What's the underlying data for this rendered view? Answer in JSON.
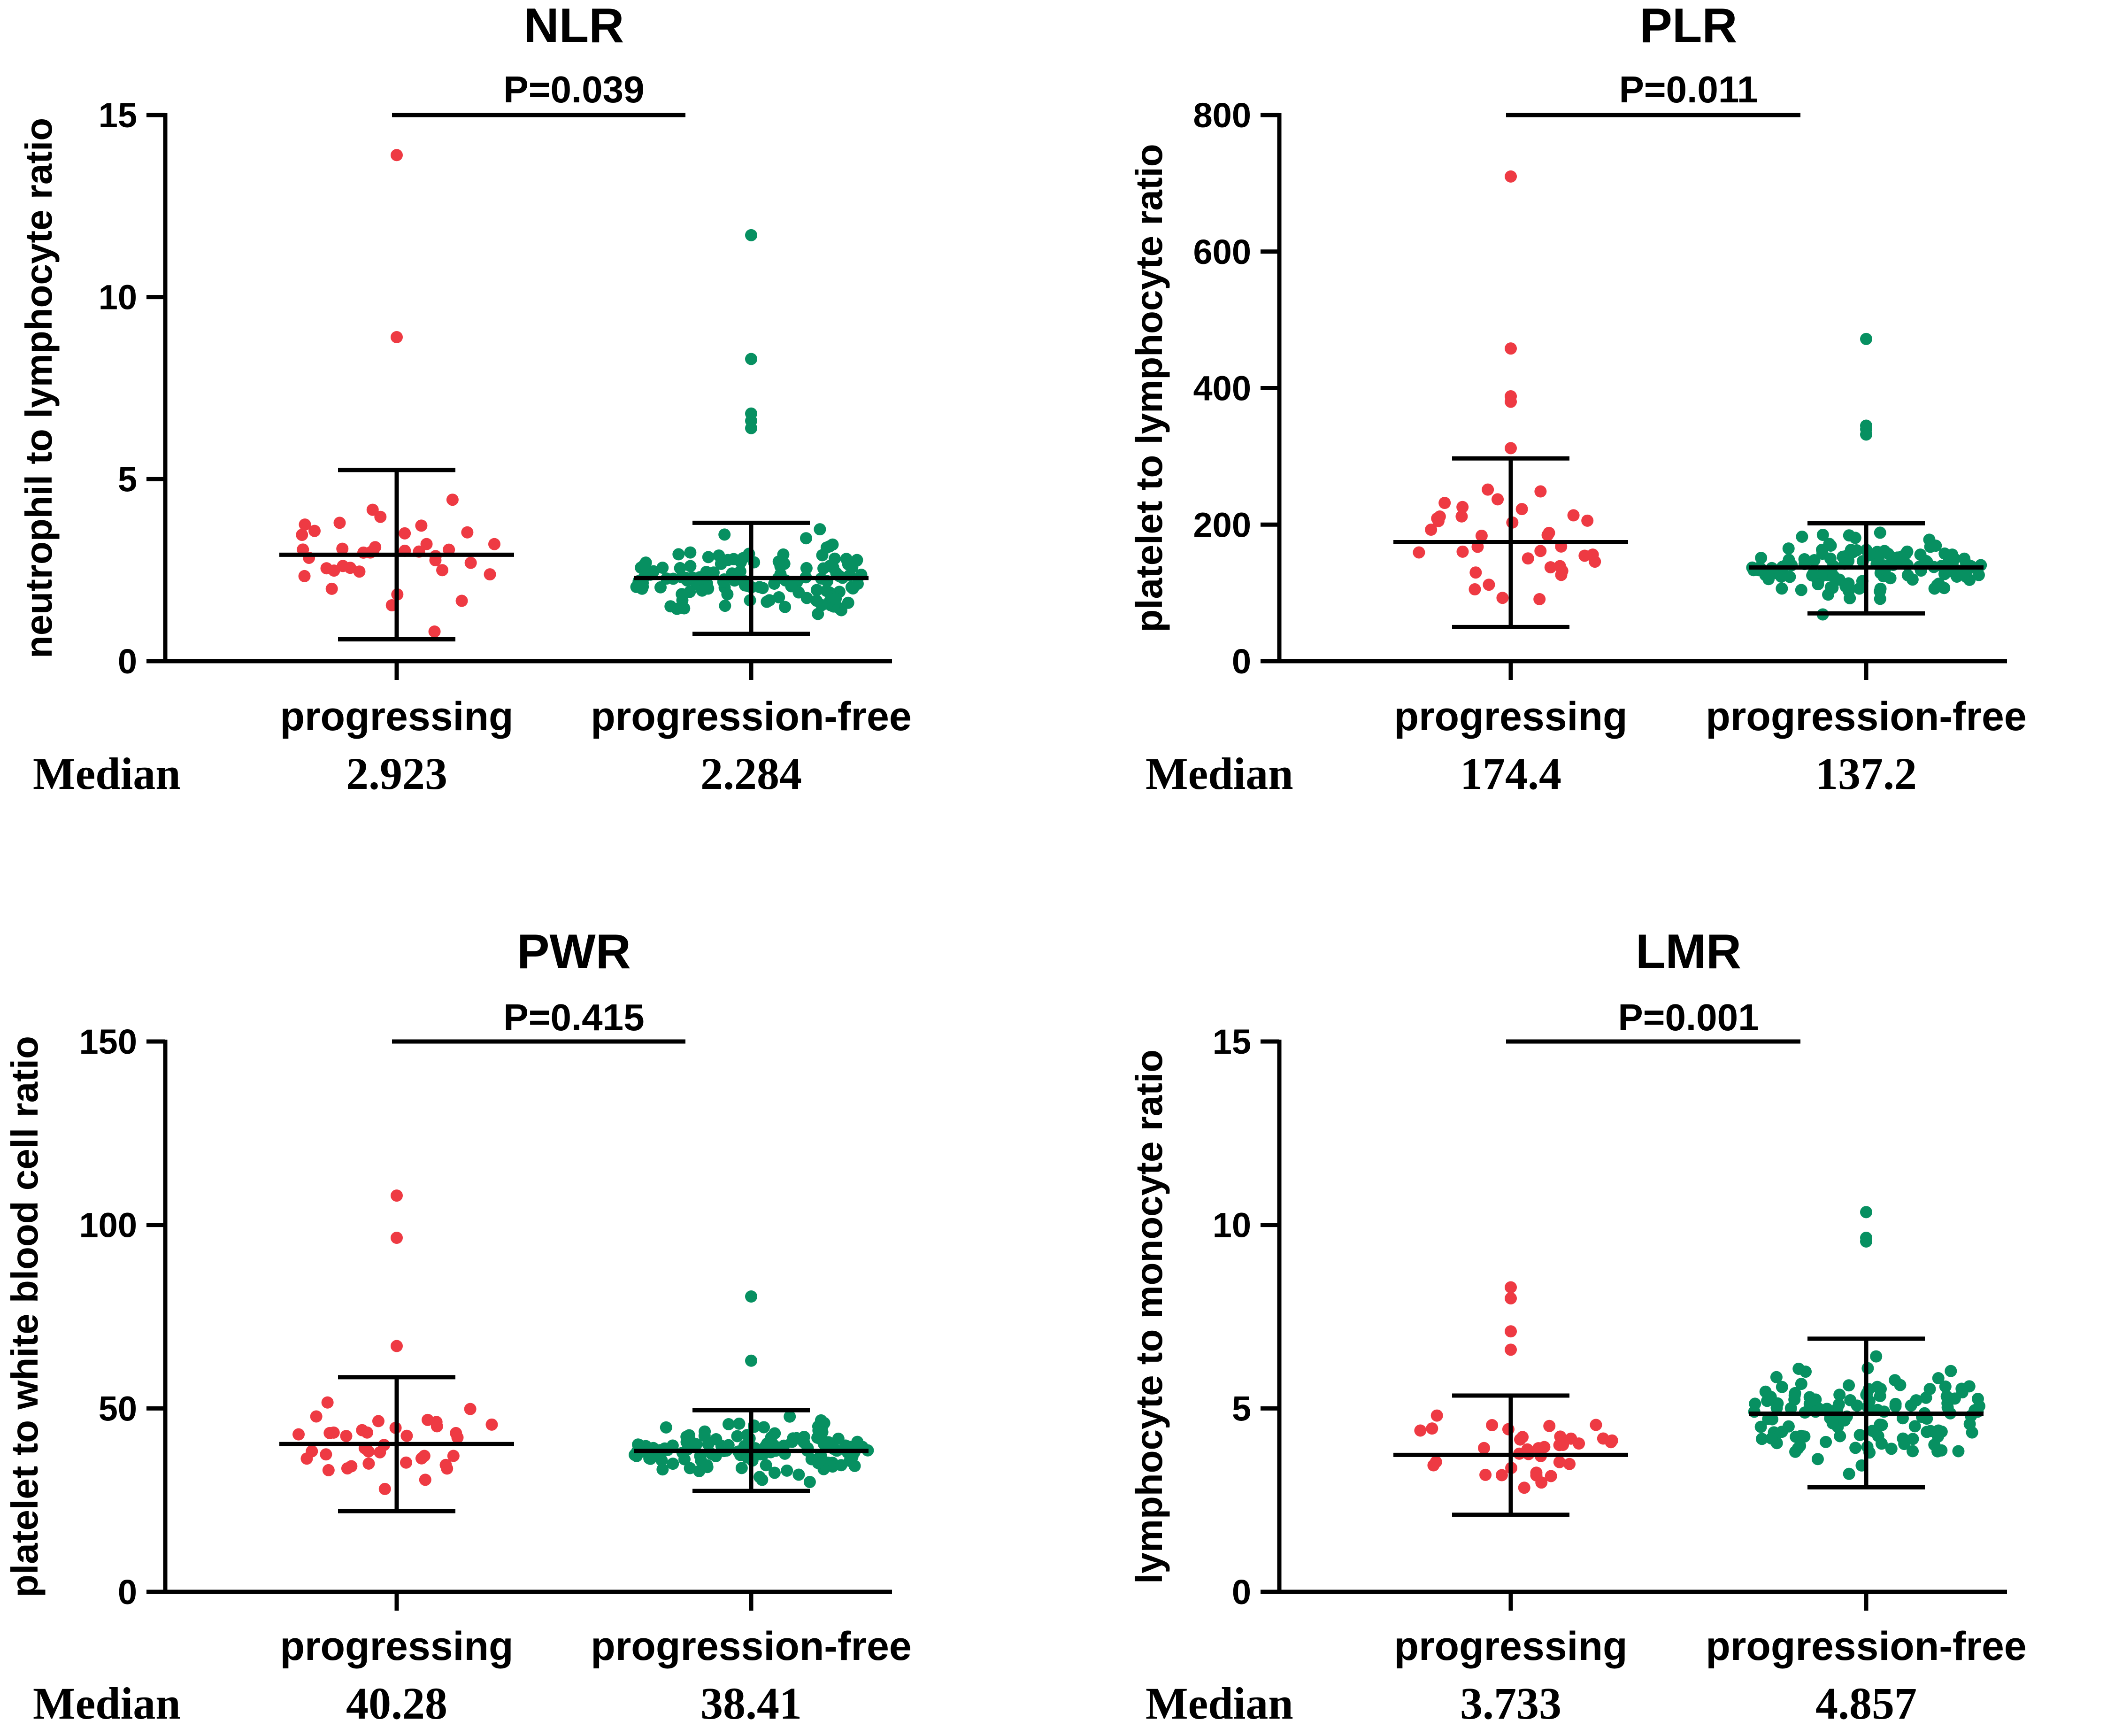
{
  "colors": {
    "progressing": "#ee3a43",
    "progression_free": "#079061",
    "axis": "#000000"
  },
  "median_label": "Median",
  "chart_data": [
    {
      "type": "scatter",
      "title": "NLR",
      "ylabel": "neutrophil to lymphocyte ratio",
      "ylim": [
        0,
        15
      ],
      "yticks": [
        0,
        5,
        10,
        15
      ],
      "categories": [
        "progressing",
        "progression-free"
      ],
      "p_value": "P=0.039",
      "medians": [
        "2.923",
        "2.284"
      ],
      "summary": [
        {
          "center": 2.923,
          "low": 0.6,
          "high": 5.25
        },
        {
          "center": 2.284,
          "low": 0.75,
          "high": 3.8
        }
      ],
      "series": [
        {
          "name": "progressing",
          "n": 40,
          "outliers": [
            13.9,
            8.9
          ]
        },
        {
          "name": "progression-free",
          "n": 130,
          "outliers": [
            11.7,
            8.3,
            6.8,
            6.6,
            6.4
          ]
        }
      ]
    },
    {
      "type": "scatter",
      "title": "PLR",
      "ylabel": "platelet to lymphocyte ratio",
      "ylim": [
        0,
        800
      ],
      "yticks": [
        0,
        200,
        400,
        600,
        800
      ],
      "categories": [
        "progressing",
        "progression-free"
      ],
      "p_value": "P=0.011",
      "medians": [
        "174.4",
        "137.2"
      ],
      "summary": [
        {
          "center": 174.4,
          "low": 50,
          "high": 297
        },
        {
          "center": 137.2,
          "low": 70,
          "high": 202
        }
      ],
      "series": [
        {
          "name": "progressing",
          "n": 40,
          "outliers": [
            710,
            458,
            388,
            380,
            312
          ]
        },
        {
          "name": "progression-free",
          "n": 130,
          "outliers": [
            472,
            345,
            340,
            332
          ]
        }
      ]
    },
    {
      "type": "scatter",
      "title": "PWR",
      "ylabel": "platelet to white blood cell ratio",
      "ylim": [
        0,
        150
      ],
      "yticks": [
        0,
        50,
        100,
        150
      ],
      "categories": [
        "progressing",
        "progression-free"
      ],
      "p_value": "P=0.415",
      "medians": [
        "40.28",
        "38.41"
      ],
      "summary": [
        {
          "center": 40.28,
          "low": 22,
          "high": 58.5
        },
        {
          "center": 38.41,
          "low": 27.5,
          "high": 49.5
        }
      ],
      "series": [
        {
          "name": "progressing",
          "n": 40,
          "outliers": [
            108,
            96.5,
            67
          ]
        },
        {
          "name": "progression-free",
          "n": 130,
          "outliers": [
            80.5,
            63
          ]
        }
      ]
    },
    {
      "type": "scatter",
      "title": "LMR",
      "ylabel": "lymphocyte to monocyte ratio",
      "ylim": [
        0,
        15
      ],
      "yticks": [
        0,
        5,
        10,
        15
      ],
      "categories": [
        "progressing",
        "progression-free"
      ],
      "p_value": "P=0.001",
      "medians": [
        "3.733",
        "4.857"
      ],
      "summary": [
        {
          "center": 3.733,
          "low": 2.1,
          "high": 5.35
        },
        {
          "center": 4.857,
          "low": 2.85,
          "high": 6.9
        }
      ],
      "series": [
        {
          "name": "progressing",
          "n": 40,
          "outliers": [
            8.3,
            8.0,
            7.1,
            6.6
          ]
        },
        {
          "name": "progression-free",
          "n": 130,
          "outliers": [
            10.35,
            9.65,
            9.55
          ]
        }
      ]
    }
  ]
}
